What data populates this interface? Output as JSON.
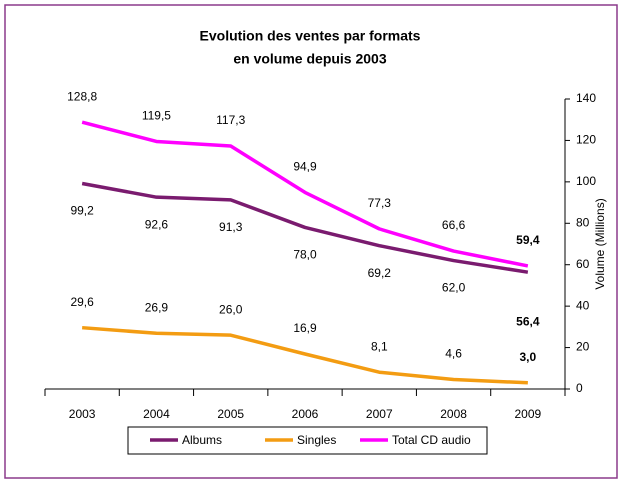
{
  "chart_data": {
    "type": "line",
    "title": [
      "Evolution des ventes par formats",
      "en volume depuis 2003"
    ],
    "y_axis_label": "Volume (Millions)",
    "categories": [
      "2003",
      "2004",
      "2005",
      "2006",
      "2007",
      "2008",
      "2009"
    ],
    "series": [
      {
        "name": "Albums",
        "color": "#7a1b6f",
        "values": [
          99.2,
          92.6,
          91.3,
          78.0,
          69.2,
          62.0,
          56.4
        ],
        "value_labels": [
          "99,2",
          "92,6",
          "91,3",
          "78,0",
          "69,2",
          "62,0",
          "56,4"
        ]
      },
      {
        "name": "Singles",
        "color": "#f39c12",
        "values": [
          29.6,
          26.9,
          26.0,
          16.9,
          8.1,
          4.6,
          3.0
        ],
        "value_labels": [
          "29,6",
          "26,9",
          "26,0",
          "16,9",
          "8,1",
          "4,6",
          "3,0"
        ]
      },
      {
        "name": "Total CD audio",
        "color": "#ff00ff",
        "values": [
          128.8,
          119.5,
          117.3,
          94.9,
          77.3,
          66.6,
          59.4
        ],
        "value_labels": [
          "128,8",
          "119,5",
          "117,3",
          "94,9",
          "77,3",
          "66,6",
          "59,4"
        ]
      }
    ],
    "ylim": [
      0,
      140
    ],
    "yticks": [
      0,
      20,
      40,
      60,
      80,
      100,
      120,
      140
    ],
    "y_axis_side": "right",
    "grid": false,
    "legend": "bottom"
  }
}
